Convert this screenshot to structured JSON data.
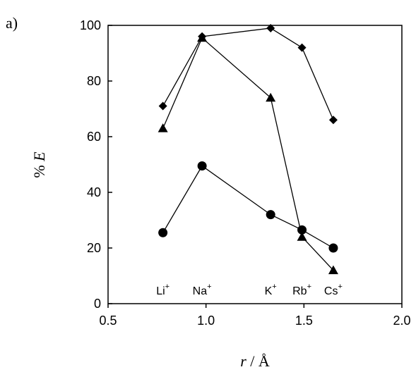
{
  "panel_label": "a)",
  "chart_data": {
    "type": "scatter",
    "xlabel": {
      "var": "r",
      "unit": "Å"
    },
    "ylabel": {
      "prefix": "%",
      "var": "E"
    },
    "xlim": [
      0.5,
      2.0
    ],
    "ylim": [
      0,
      100
    ],
    "xticks": [
      "0.5",
      "1.0",
      "1.5",
      "2.0"
    ],
    "yticks": [
      "0",
      "20",
      "40",
      "60",
      "80",
      "100"
    ],
    "grid": false,
    "ion_labels": [
      {
        "base": "Li",
        "sup": "+",
        "x": 0.78
      },
      {
        "base": "Na",
        "sup": "+",
        "x": 0.98
      },
      {
        "base": "K",
        "sup": "+",
        "x": 1.33
      },
      {
        "base": "Rb",
        "sup": "+",
        "x": 1.49
      },
      {
        "base": "Cs",
        "sup": "+",
        "x": 1.65
      }
    ],
    "series": [
      {
        "marker": "diamond",
        "x": [
          0.78,
          0.98,
          1.33,
          1.49,
          1.65
        ],
        "values": [
          71,
          96,
          99,
          92,
          66
        ]
      },
      {
        "marker": "triangle",
        "x": [
          0.78,
          0.98,
          1.33,
          1.49,
          1.65
        ],
        "values": [
          63,
          95.5,
          74,
          24,
          12
        ]
      },
      {
        "marker": "circle",
        "x": [
          0.78,
          0.98,
          1.33,
          1.49,
          1.65
        ],
        "values": [
          25.5,
          49.5,
          32,
          26.5,
          20
        ]
      }
    ]
  }
}
